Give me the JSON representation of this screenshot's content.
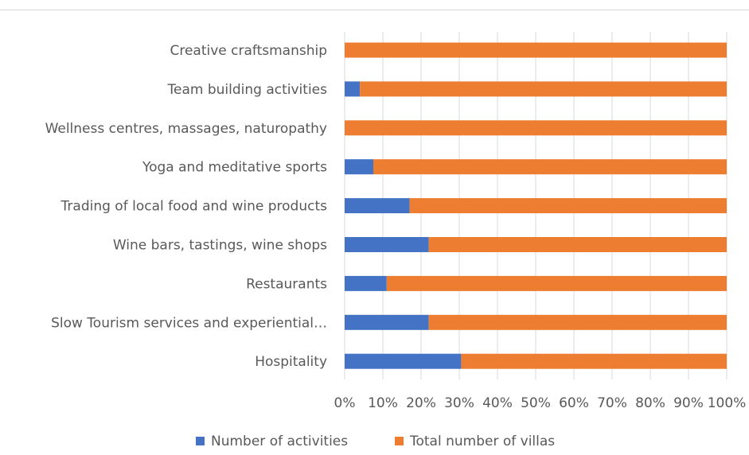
{
  "chart_data": {
    "type": "bar",
    "orientation": "horizontal",
    "stacked": "percent",
    "categories": [
      "Creative craftsmanship",
      "Team building activities",
      "Wellness centres, massages, naturopathy",
      "Yoga and meditative sports",
      "Trading of local food and wine products",
      "Wine bars, tastings, wine shops",
      "Restaurants",
      "Slow Tourism services and experiential…",
      "Hospitality"
    ],
    "series": [
      {
        "name": "Number of activities",
        "color": "#4472c4",
        "values": [
          0,
          4,
          0,
          7.5,
          17,
          22,
          11,
          22,
          30.5
        ]
      },
      {
        "name": "Total number of villas",
        "color": "#ed7d31",
        "values": [
          100,
          96,
          100,
          92.5,
          83,
          78,
          89,
          78,
          69.5
        ]
      }
    ],
    "xlim": [
      0,
      100
    ],
    "x_ticks": [
      "0%",
      "10%",
      "20%",
      "30%",
      "40%",
      "50%",
      "60%",
      "70%",
      "80%",
      "90%",
      "100%"
    ],
    "grid": true,
    "legend_position": "bottom"
  }
}
